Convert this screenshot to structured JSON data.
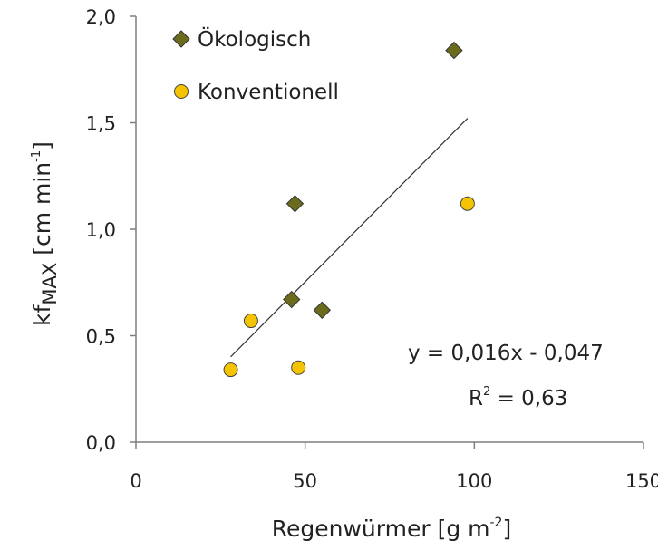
{
  "chart_data": {
    "type": "scatter",
    "xlabel": "Regenwürmer [g m",
    "xlabel_sup": "-2",
    "xlabel_end": "]",
    "ylabel_main": "kf",
    "ylabel_sub": "MAX",
    "ylabel_unit": " [cm min",
    "ylabel_sup": "-1",
    "ylabel_end": "]",
    "xlim": [
      0,
      150
    ],
    "ylim": [
      0,
      2
    ],
    "x_ticks": [
      0,
      50,
      100,
      150
    ],
    "x_tick_labels": [
      "0",
      "50",
      "100",
      "150"
    ],
    "y_ticks": [
      0,
      0.5,
      1.0,
      1.5,
      2.0
    ],
    "y_tick_labels": [
      "0,0",
      "0,5",
      "1,0",
      "1,5",
      "2,0"
    ],
    "grid": false,
    "legend_position": "top-left",
    "series": [
      {
        "name": "Ökologisch",
        "marker": "diamond",
        "color": "#6b6b1e",
        "points": [
          {
            "x": 46,
            "y": 0.67
          },
          {
            "x": 47,
            "y": 1.12
          },
          {
            "x": 55,
            "y": 0.62
          },
          {
            "x": 94,
            "y": 1.84
          }
        ]
      },
      {
        "name": "Konventionell",
        "marker": "circle",
        "color": "#f5c400",
        "points": [
          {
            "x": 28,
            "y": 0.34
          },
          {
            "x": 34,
            "y": 0.57
          },
          {
            "x": 48,
            "y": 0.35
          },
          {
            "x": 98,
            "y": 1.12
          }
        ]
      }
    ],
    "trendline": {
      "slope": 0.016,
      "intercept": -0.047,
      "x_range": [
        28,
        98
      ],
      "equation": "y = 0,016x - 0,047",
      "r2_label": "R",
      "r2_sup": "2",
      "r2_value": " = 0,63"
    }
  }
}
